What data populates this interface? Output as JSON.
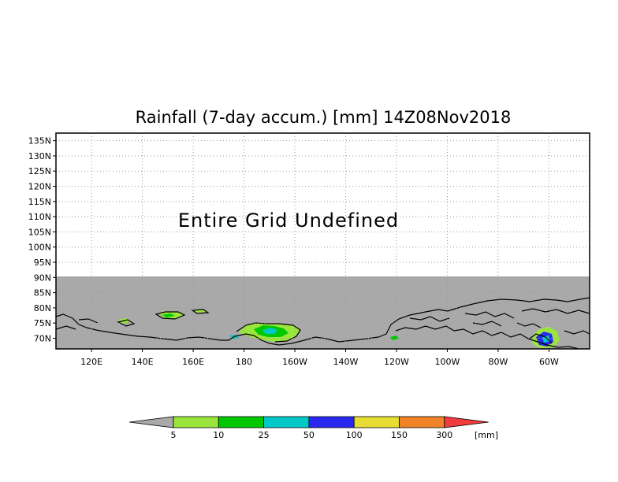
{
  "title": "Rainfall (7-day accum.) [mm] 14Z08Nov2018",
  "message": "Entire Grid Undefined",
  "y_axis": {
    "labels": [
      "135N",
      "130N",
      "125N",
      "120N",
      "115N",
      "110N",
      "105N",
      "100N",
      "95N",
      "90N",
      "85N",
      "80N",
      "75N",
      "70N"
    ],
    "values": [
      135,
      130,
      125,
      120,
      115,
      110,
      105,
      100,
      95,
      90,
      85,
      80,
      75,
      70
    ],
    "range": [
      66.5,
      137.5
    ]
  },
  "x_axis": {
    "labels": [
      "120E",
      "140E",
      "160E",
      "180",
      "160W",
      "140W",
      "120W",
      "100W",
      "80W",
      "60W"
    ],
    "values": [
      120,
      140,
      160,
      180,
      200,
      220,
      240,
      260,
      280,
      300
    ],
    "range": [
      106,
      316
    ]
  },
  "undefined_region_above_lat": 90,
  "colors": {
    "undefined": "#a9a9a9",
    "frame": "#000000"
  },
  "colorbar": {
    "labels": [
      "5",
      "10",
      "25",
      "50",
      "100",
      "150",
      "300"
    ],
    "unit": "[mm]",
    "colors": [
      "#a9a9a9",
      "#9be63c",
      "#00c800",
      "#00c8c8",
      "#2828f0",
      "#e6dc32",
      "#f08228",
      "#f03c3c"
    ]
  }
}
